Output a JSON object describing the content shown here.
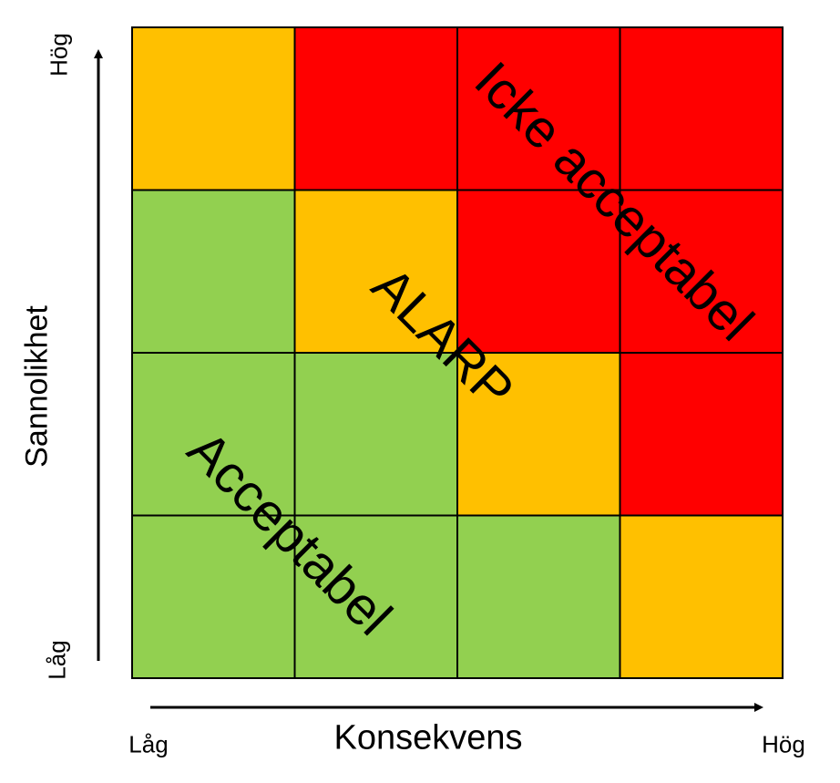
{
  "chart_data": {
    "type": "heatmap",
    "title": "",
    "xlabel": "Konsekvens",
    "ylabel": "Sannolikhet",
    "x_axis_ends": {
      "low": "Låg",
      "high": "Hög"
    },
    "y_axis_ends": {
      "low": "Låg",
      "high": "Hög"
    },
    "rows_top_to_bottom": [
      [
        "orange",
        "red",
        "red",
        "red"
      ],
      [
        "green",
        "orange",
        "red",
        "red"
      ],
      [
        "green",
        "green",
        "orange",
        "red"
      ],
      [
        "green",
        "green",
        "green",
        "orange"
      ]
    ],
    "colors": {
      "green": "#92D050",
      "orange": "#FFC000",
      "red": "#FF0000"
    },
    "zones": {
      "acceptable": "Acceptabel",
      "alarp": "ALARP",
      "not_acceptable": "Icke acceptabel"
    },
    "grid": true,
    "legend": "none"
  }
}
